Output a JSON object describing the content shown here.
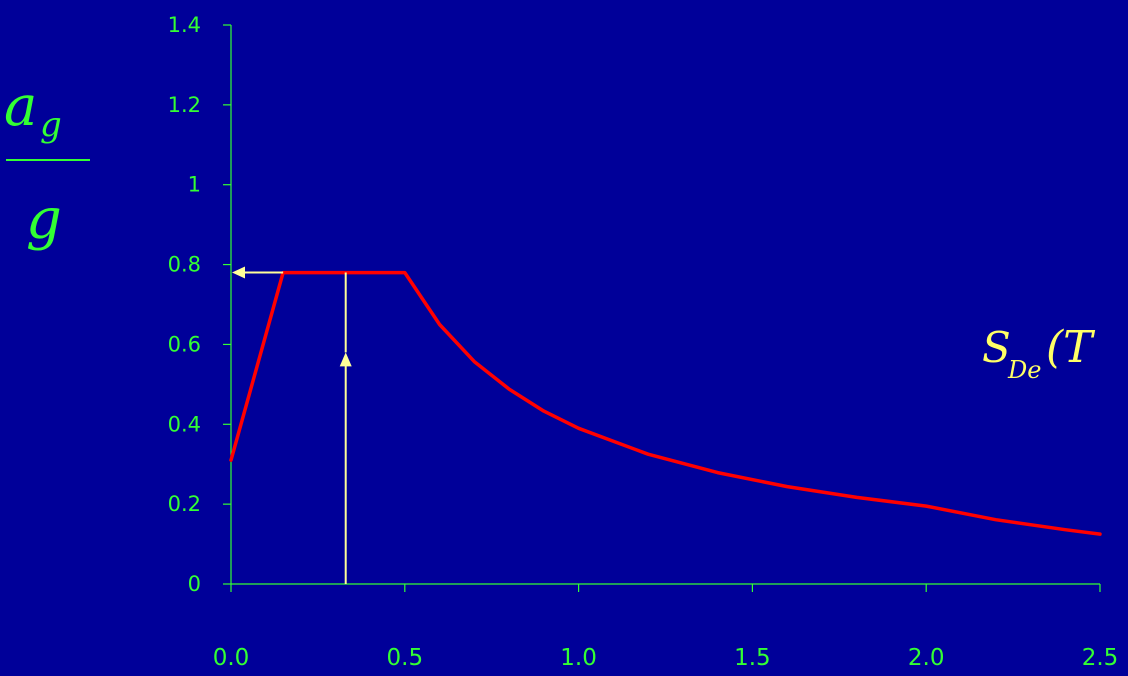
{
  "chart_data": {
    "type": "line",
    "title": "",
    "xlabel": "",
    "ylabel": {
      "numerator": "a",
      "numerator_sub": "g",
      "denominator": "g"
    },
    "xlim": [
      0,
      2.5
    ],
    "ylim": [
      0,
      1.4
    ],
    "x_ticks": [
      0,
      0.5,
      1.0,
      1.5,
      2.0,
      2.5
    ],
    "x_tick_labels": [
      "0.0",
      "0.5",
      "1.0",
      "1.5",
      "2.0",
      "2.5"
    ],
    "y_ticks": [
      0,
      0.2,
      0.4,
      0.6,
      0.8,
      1.0,
      1.2,
      1.4
    ],
    "y_tick_labels": [
      "0",
      "0.2",
      "0.4",
      "0.6",
      "0.8",
      "1",
      "1.2",
      "1.4"
    ],
    "grid": false,
    "series": [
      {
        "name": "",
        "x": [
          0.0,
          0.15,
          0.5,
          0.6,
          0.7,
          0.8,
          0.9,
          1.0,
          1.2,
          1.4,
          1.6,
          1.8,
          2.0,
          2.2,
          2.4,
          2.5
        ],
        "y": [
          0.31,
          0.78,
          0.78,
          0.65,
          0.557,
          0.488,
          0.433,
          0.39,
          0.325,
          0.279,
          0.244,
          0.217,
          0.195,
          0.161,
          0.136,
          0.125
        ]
      }
    ],
    "annotations": [
      {
        "label": "S",
        "label_sub": "De",
        "label_suffix": "(T"
      }
    ],
    "arrows": [
      {
        "kind": "up",
        "x": 0.33,
        "from_y": 0,
        "to_y": 0.58
      },
      {
        "kind": "vertical-line",
        "x": 0.33,
        "from_y": 0.58,
        "to_y": 0.78
      },
      {
        "kind": "left",
        "y": 0.78,
        "from_x": 0.15,
        "to_x": 0.0
      }
    ],
    "colors": {
      "background": "#000099",
      "axis": "#33ff33",
      "tick_text": "#33ff33",
      "series": "#ff0000",
      "arrows": "#ffff99",
      "annotation": "#ffff66"
    }
  }
}
